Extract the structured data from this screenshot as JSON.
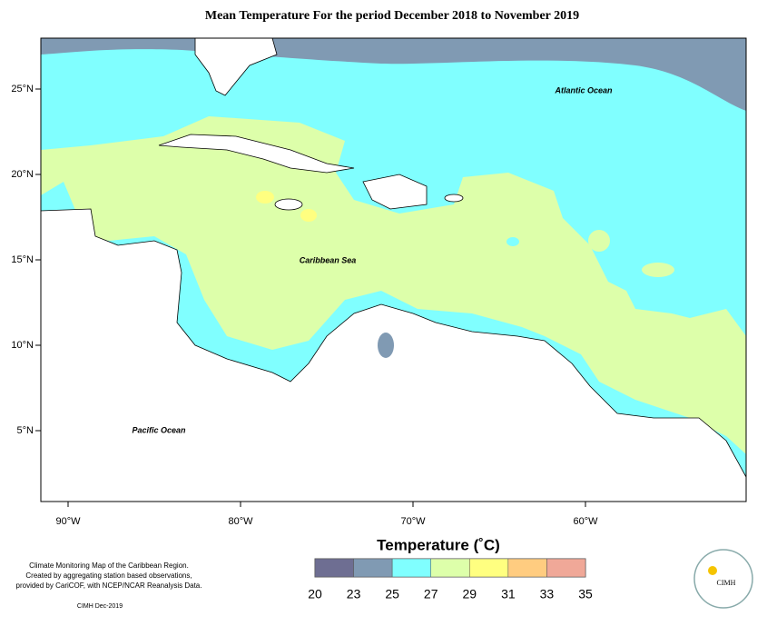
{
  "title": "Mean Temperature For the period December 2018 to November 2019",
  "map": {
    "lon_ticks": [
      {
        "value": -90,
        "label": "90°W"
      },
      {
        "value": -80,
        "label": "80°W"
      },
      {
        "value": -70,
        "label": "70°W"
      },
      {
        "value": -60,
        "label": "60°W"
      }
    ],
    "lat_ticks": [
      {
        "value": 25,
        "label": "25°N"
      },
      {
        "value": 20,
        "label": "20°N"
      },
      {
        "value": 15,
        "label": "15°N"
      },
      {
        "value": 10,
        "label": "10°N"
      },
      {
        "value": 5,
        "label": "5°N"
      }
    ],
    "labels": [
      "Atlantic Ocean",
      "Caribbean Sea",
      "Pacific Ocean"
    ]
  },
  "legend": {
    "title": "Temperature (˚C)",
    "ticks": [
      20,
      23,
      25,
      27,
      29,
      31,
      33,
      35
    ],
    "colors": [
      "#6e6e92",
      "#809ab3",
      "#80ffff",
      "#ddffaa",
      "#ffff80",
      "#ffcc80",
      "#f0a898"
    ]
  },
  "footer": {
    "lines": [
      "Climate Monitoring Map of the Caribbean Region.",
      "Created by aggregating station based observations,",
      "provided by CariCOF, with NCEP/NCAR Reanalysis Data."
    ],
    "credit": "CIMH Dec-2019"
  },
  "logo": "CIMH"
}
